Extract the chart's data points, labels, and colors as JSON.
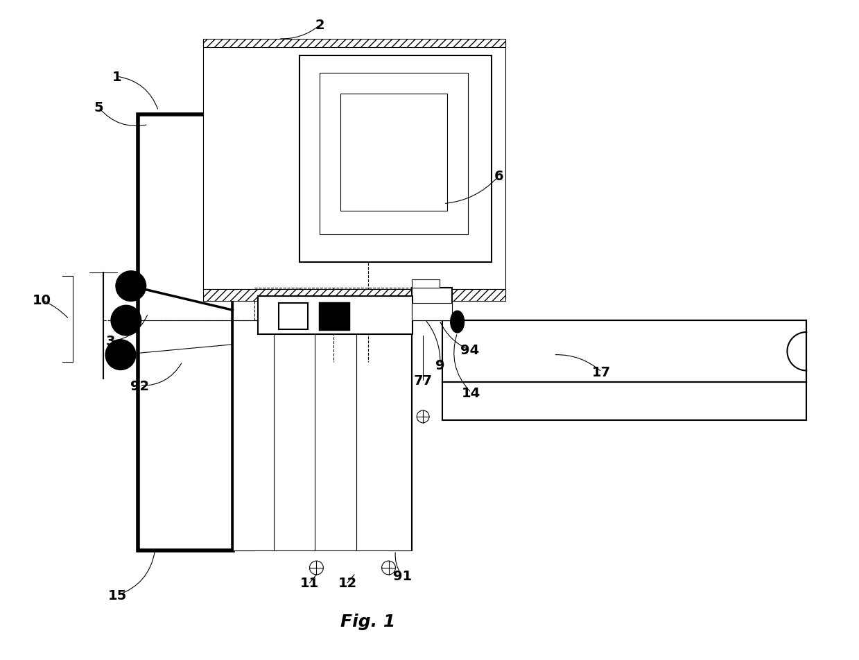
{
  "bg_color": "#ffffff",
  "title": "Fig. 1",
  "lw_thin": 0.8,
  "lw_med": 1.5,
  "lw_thick": 2.5,
  "lw_vthick": 4.0
}
